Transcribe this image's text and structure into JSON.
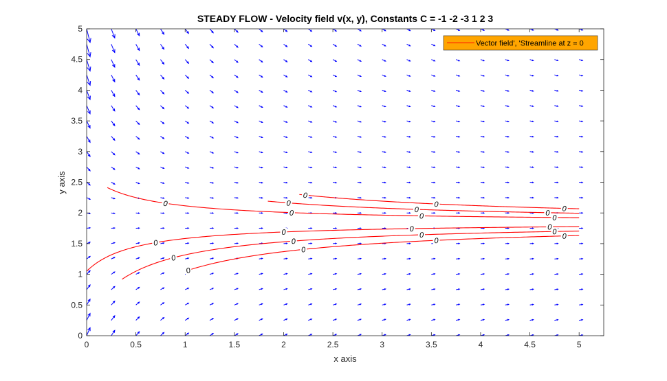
{
  "chart_data": {
    "type": "vector_field_with_contours",
    "title": "STEADY FLOW - Velocity field v(x, y),  Constants C = -1 -2 -3 1 2 3",
    "xlabel": "x axis",
    "ylabel": "y axis",
    "xlim": [
      0,
      5.25
    ],
    "ylim": [
      0,
      5
    ],
    "xticks": [
      0,
      0.5,
      1,
      1.5,
      2,
      2.5,
      3,
      3.5,
      4,
      4.5,
      5
    ],
    "yticks": [
      0,
      0.5,
      1,
      1.5,
      2,
      2.5,
      3,
      3.5,
      4,
      4.5,
      5
    ],
    "xtick_labels": [
      "0",
      "0.5",
      "1",
      "1.5",
      "2",
      "2.5",
      "3",
      "3.5",
      "4",
      "4.5",
      "5"
    ],
    "ytick_labels": [
      "0",
      "0.5",
      "1",
      "1.5",
      "2",
      "2.5",
      "3",
      "3.5",
      "4",
      "4.5",
      "5"
    ],
    "legend": {
      "position": "top-right",
      "label": "Vector field', 'Streamline at z = 0",
      "background": "#FFA500",
      "line_color": "#FF0000"
    },
    "colors": {
      "arrows": "#0000FF",
      "streamlines": "#FF0000"
    },
    "vector_field": {
      "grid_x": {
        "start": 0,
        "end": 5.25,
        "step": 0.25
      },
      "grid_y": {
        "start": 0,
        "end": 5,
        "step": 0.25
      },
      "u": "1",
      "v": "-(y-1.85)/(x+0.5)",
      "y_center": 1.85
    },
    "streamlines": [
      {
        "C": -3,
        "x_range": [
          1.0,
          5.0
        ],
        "label_x": [
          1.03,
          2.2,
          3.55,
          4.85
        ]
      },
      {
        "C": -2,
        "x_range": [
          0.36,
          5.0
        ],
        "label_x": [
          0.88,
          2.1,
          3.4,
          4.75
        ]
      },
      {
        "C": -1,
        "x_range": [
          0.0,
          5.0
        ],
        "label_x": [
          0.7,
          2.0,
          3.3,
          4.7
        ]
      },
      {
        "C": 1,
        "x_range": [
          0.21,
          5.0
        ],
        "label_x": [
          0.8,
          2.08,
          3.4,
          4.75
        ]
      },
      {
        "C": 2,
        "x_range": [
          1.84,
          5.0
        ],
        "label_x": [
          2.05,
          3.35,
          4.68
        ]
      },
      {
        "C": 3,
        "x_range": [
          2.16,
          5.0
        ],
        "label_x": [
          2.22,
          3.55,
          4.85
        ]
      }
    ],
    "contour_label": "0",
    "grid": false
  }
}
